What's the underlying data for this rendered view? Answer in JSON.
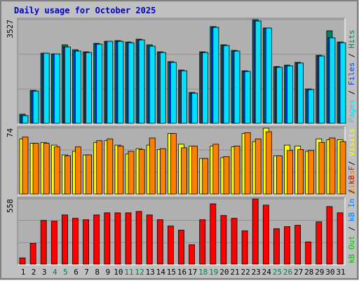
{
  "chart_data": [
    {
      "type": "bar",
      "title": "Daily usage for October 2025",
      "ylim": [
        0,
        3527
      ],
      "yticks": [
        3527
      ],
      "legend_separator": " / ",
      "series": [
        {
          "name": "Hits",
          "color": "#008060",
          "values": [
            310,
            1120,
            2383,
            2360,
            2670,
            2502,
            2431,
            2717,
            2788,
            2812,
            2765,
            2860,
            2670,
            2431,
            2097,
            1811,
            1049,
            2431,
            3289,
            2670,
            2479,
            1787,
            3527,
            3241,
            1930,
            1978,
            2073,
            1168,
            2312,
            3146,
            2765
          ]
        },
        {
          "name": "Files",
          "color": "#0040ff",
          "values": [
            262,
            1096,
            2383,
            2360,
            2597,
            2455,
            2407,
            2693,
            2788,
            2788,
            2741,
            2836,
            2622,
            2407,
            2073,
            1787,
            1025,
            2407,
            3265,
            2646,
            2455,
            1763,
            3480,
            3241,
            1906,
            1954,
            2049,
            1144,
            2288,
            2907,
            2741
          ]
        },
        {
          "name": "Pages",
          "color": "#00e0ff",
          "values": [
            262,
            1096,
            2383,
            2360,
            2597,
            2455,
            2407,
            2693,
            2788,
            2788,
            2741,
            2836,
            2622,
            2407,
            2073,
            1787,
            1025,
            2407,
            3265,
            2646,
            2455,
            1763,
            3480,
            3241,
            1906,
            1954,
            2049,
            1144,
            2288,
            2907,
            2741
          ]
        }
      ]
    },
    {
      "type": "bar",
      "ylim": [
        0,
        74
      ],
      "yticks": [
        74
      ],
      "legend_separator": " / ",
      "series": [
        {
          "name": "Visits",
          "color": "#ffff00",
          "values": [
            62,
            57,
            58,
            55,
            44,
            48,
            44,
            58,
            60,
            55,
            45,
            51,
            55,
            50,
            68,
            56,
            54,
            40,
            54,
            41,
            53,
            68,
            59,
            74,
            43,
            55,
            54,
            48,
            62,
            61,
            61
          ]
        },
        {
          "name": "Sites",
          "color": "#ff8000",
          "values": [
            64,
            57,
            57,
            53,
            43,
            53,
            44,
            60,
            62,
            54,
            48,
            50,
            63,
            51,
            68,
            52,
            54,
            40,
            56,
            42,
            54,
            69,
            62,
            70,
            43,
            49,
            50,
            49,
            58,
            63,
            59
          ]
        }
      ]
    },
    {
      "type": "bar",
      "ylim": [
        0,
        558
      ],
      "yticks": [
        558
      ],
      "legend_separator": " / ",
      "categories": [
        "1",
        "2",
        "3",
        "4",
        "5",
        "6",
        "7",
        "8",
        "9",
        "10",
        "11",
        "12",
        "13",
        "14",
        "15",
        "16",
        "17",
        "18",
        "19",
        "20",
        "21",
        "22",
        "23",
        "24",
        "25",
        "26",
        "27",
        "28",
        "29",
        "30",
        "31"
      ],
      "category_colors": [
        "#000000",
        "#000000",
        "#000000",
        "#008040",
        "#008040",
        "#000000",
        "#000000",
        "#000000",
        "#000000",
        "#000000",
        "#008040",
        "#008040",
        "#000000",
        "#000000",
        "#000000",
        "#000000",
        "#000000",
        "#008040",
        "#008040",
        "#000000",
        "#000000",
        "#000000",
        "#000000",
        "#000000",
        "#008040",
        "#008040",
        "#000000",
        "#000000",
        "#000000",
        "#000000",
        "#000000"
      ],
      "series": [
        {
          "name": "kB F",
          "color": "#ff0000",
          "values": [
            53,
            178,
            374,
            368,
            421,
            392,
            380,
            421,
            439,
            439,
            439,
            451,
            421,
            380,
            326,
            291,
            166,
            380,
            516,
            416,
            392,
            285,
            558,
            505,
            303,
            321,
            332,
            190,
            362,
            493,
            439
          ]
        },
        {
          "name": "kB In",
          "color": "#0080ff",
          "values": [
            0,
            0,
            0,
            0,
            0,
            0,
            0,
            0,
            0,
            0,
            0,
            0,
            0,
            0,
            0,
            0,
            0,
            0,
            0,
            0,
            0,
            0,
            0,
            0,
            0,
            0,
            0,
            0,
            0,
            0,
            0
          ]
        },
        {
          "name": "kB Out",
          "color": "#00c000",
          "values": [
            0,
            0,
            0,
            0,
            0,
            0,
            0,
            0,
            0,
            0,
            0,
            0,
            0,
            0,
            0,
            0,
            0,
            0,
            0,
            0,
            0,
            0,
            0,
            0,
            0,
            0,
            0,
            0,
            0,
            0,
            0
          ]
        }
      ]
    }
  ]
}
